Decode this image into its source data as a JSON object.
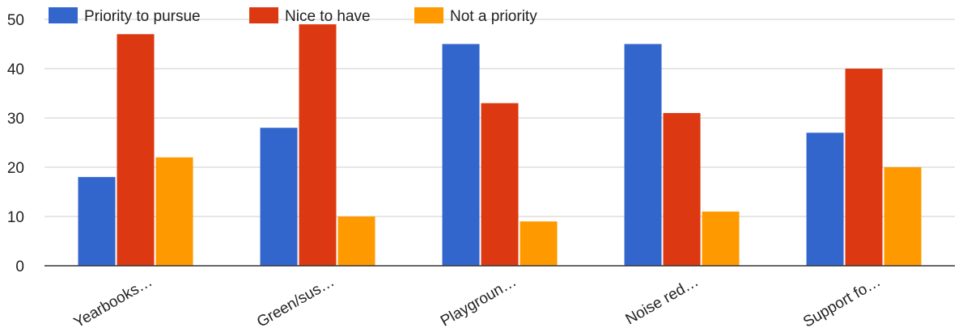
{
  "chart_data": {
    "type": "bar",
    "categories": [
      "Yearbooks…",
      "Green/sus…",
      "Playgroun…",
      "Noise red…",
      "Support fo…"
    ],
    "series": [
      {
        "name": "Priority to pursue",
        "color": "#3366cc",
        "values": [
          18,
          28,
          45,
          45,
          27
        ]
      },
      {
        "name": "Nice to have",
        "color": "#dc3912",
        "values": [
          47,
          49,
          33,
          31,
          40
        ]
      },
      {
        "name": "Not a priority",
        "color": "#ff9900",
        "values": [
          22,
          10,
          9,
          11,
          20
        ]
      }
    ],
    "ylim": [
      0,
      50
    ],
    "yticks": [
      0,
      10,
      20,
      30,
      40,
      50
    ],
    "grid": true,
    "legend_position": "top"
  }
}
